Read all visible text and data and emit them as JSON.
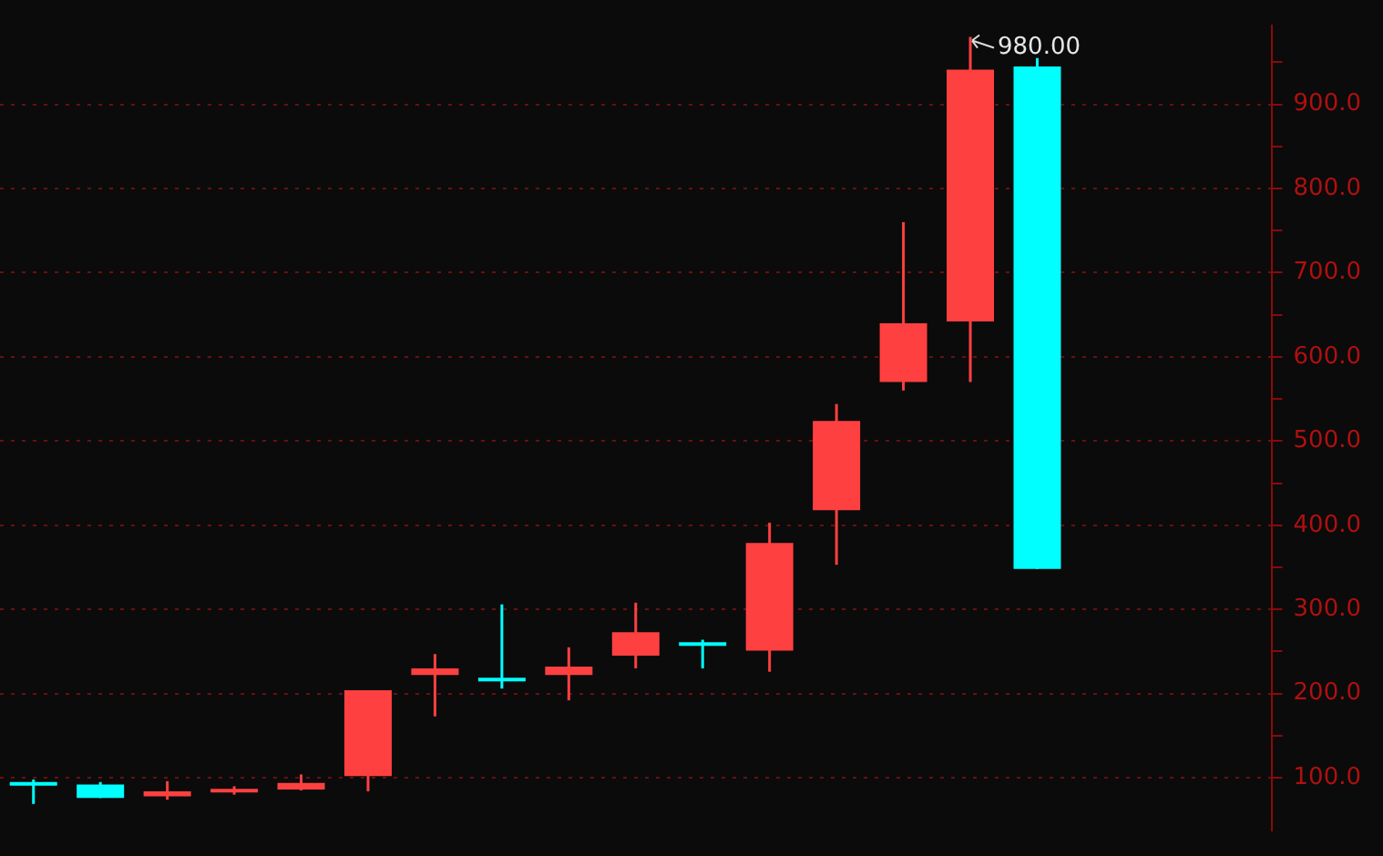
{
  "chart_data": {
    "type": "candlestick",
    "categories": [
      null,
      null,
      null,
      null,
      null,
      null,
      null,
      null,
      null,
      null,
      null,
      null,
      null,
      null,
      null,
      null,
      null,
      null,
      null
    ],
    "ohlc": [
      [
        95,
        98,
        69,
        94
      ],
      [
        92,
        95,
        76,
        76
      ],
      [
        78,
        96,
        74,
        84
      ],
      [
        85,
        90,
        80,
        87
      ],
      [
        86,
        104,
        85,
        94
      ],
      [
        102,
        204,
        84,
        204
      ],
      [
        222,
        247,
        173,
        230
      ],
      [
        219,
        306,
        206,
        218
      ],
      [
        222,
        255,
        192,
        232
      ],
      [
        245,
        308,
        230,
        273
      ],
      [
        261,
        264,
        230,
        260
      ],
      [
        251,
        403,
        226,
        379
      ],
      [
        418,
        544,
        353,
        524
      ],
      [
        570,
        760,
        560,
        640
      ],
      [
        642,
        980,
        570,
        941
      ],
      [
        945,
        955,
        348,
        348
      ],
      null,
      null,
      null
    ],
    "colors": [
      "#00ffff",
      "#00ffff",
      "#ff4040",
      "#ff4040",
      "#ff4040",
      "#ff4040",
      "#ff4040",
      "#00ffff",
      "#ff4040",
      "#ff4040",
      "#00ffff",
      "#ff4040",
      "#ff4040",
      "#ff4040",
      "#ff4040",
      "#00ffff",
      null,
      null,
      null
    ],
    "ylim": [
      37,
      994
    ],
    "yticks": [
      {
        "value": 100,
        "label": "100.0"
      },
      {
        "value": 150,
        "label": null
      },
      {
        "value": 200,
        "label": "200.0"
      },
      {
        "value": 250,
        "label": null
      },
      {
        "value": 300,
        "label": "300.0"
      },
      {
        "value": 350,
        "label": null
      },
      {
        "value": 400,
        "label": "400.0"
      },
      {
        "value": 450,
        "label": null
      },
      {
        "value": 500,
        "label": "500.0"
      },
      {
        "value": 550,
        "label": null
      },
      {
        "value": 600,
        "label": "600.0"
      },
      {
        "value": 650,
        "label": null
      },
      {
        "value": 700,
        "label": "700.0"
      },
      {
        "value": 750,
        "label": null
      },
      {
        "value": 800,
        "label": "800.0"
      },
      {
        "value": 850,
        "label": null
      },
      {
        "value": 900,
        "label": "900.0"
      },
      {
        "value": 950,
        "label": null
      }
    ],
    "grid": "y",
    "annotations": [
      "980.00"
    ]
  }
}
